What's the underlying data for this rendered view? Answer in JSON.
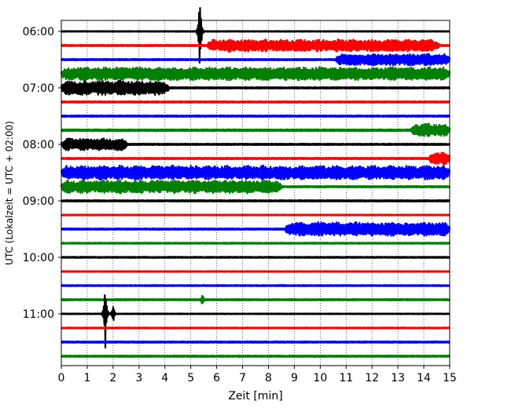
{
  "chart_data": {
    "type": "line",
    "title": "",
    "xlabel": "Zeit  [min]",
    "ylabel": "UTC (Lokalzeit = UTC + 02:00)",
    "xlim": [
      0,
      15
    ],
    "x_ticks": [
      0,
      1,
      2,
      3,
      4,
      5,
      6,
      7,
      8,
      9,
      10,
      11,
      12,
      13,
      14,
      15
    ],
    "x_grid": true,
    "trace_interval_min": 15,
    "trace_colors": [
      "#000000",
      "#ff0000",
      "#0000ff",
      "#008000"
    ],
    "y_ticks": [
      {
        "label": "06:00",
        "index": 0
      },
      {
        "label": "07:00",
        "index": 4
      },
      {
        "label": "08:00",
        "index": 8
      },
      {
        "label": "09:00",
        "index": 12
      },
      {
        "label": "10:00",
        "index": 16
      },
      {
        "label": "11:00",
        "index": 20
      }
    ],
    "traces": [
      {
        "start": "06:00",
        "color": "#000000",
        "base": 0.5,
        "events": [
          {
            "type": "spike",
            "x": 5.35,
            "amp": 3.5
          }
        ]
      },
      {
        "start": "06:15",
        "color": "#ff0000",
        "base": 1,
        "events": [
          {
            "type": "band",
            "x0": 5.65,
            "x1": 14.6,
            "amp": 0.42
          }
        ]
      },
      {
        "start": "06:30",
        "color": "#0000ff",
        "base": 1,
        "events": [
          {
            "type": "band",
            "x0": 10.6,
            "x1": 15,
            "amp": 0.4
          }
        ]
      },
      {
        "start": "06:45",
        "color": "#008000",
        "base": 1,
        "events": [
          {
            "type": "band",
            "x0": 0,
            "x1": 15,
            "amp": 0.45
          }
        ]
      },
      {
        "start": "07:00",
        "color": "#000000",
        "base": 1,
        "events": [
          {
            "type": "band",
            "x0": 0,
            "x1": 4.15,
            "amp": 0.5
          }
        ]
      },
      {
        "start": "07:15",
        "color": "#ff0000",
        "base": 1,
        "events": []
      },
      {
        "start": "07:30",
        "color": "#0000ff",
        "base": 1,
        "events": []
      },
      {
        "start": "07:45",
        "color": "#008000",
        "base": 1.3,
        "events": [
          {
            "type": "band",
            "x0": 13.5,
            "x1": 15,
            "amp": 0.45
          }
        ]
      },
      {
        "start": "08:00",
        "color": "#000000",
        "base": 1,
        "events": [
          {
            "type": "band",
            "x0": 0,
            "x1": 2.55,
            "amp": 0.42
          }
        ]
      },
      {
        "start": "08:15",
        "color": "#ff0000",
        "base": 1,
        "events": [
          {
            "type": "band",
            "x0": 14.2,
            "x1": 15,
            "amp": 0.45
          }
        ]
      },
      {
        "start": "08:30",
        "color": "#0000ff",
        "base": 1,
        "events": [
          {
            "type": "band",
            "x0": 0,
            "x1": 15,
            "amp": 0.48
          }
        ]
      },
      {
        "start": "08:45",
        "color": "#008000",
        "base": 1,
        "events": [
          {
            "type": "band",
            "x0": 0,
            "x1": 8.5,
            "amp": 0.45
          }
        ]
      },
      {
        "start": "09:00",
        "color": "#000000",
        "base": 1,
        "events": []
      },
      {
        "start": "09:15",
        "color": "#ff0000",
        "base": 0.6,
        "events": []
      },
      {
        "start": "09:30",
        "color": "#0000ff",
        "base": 1,
        "events": [
          {
            "type": "band",
            "x0": 8.65,
            "x1": 15,
            "amp": 0.48
          }
        ]
      },
      {
        "start": "09:45",
        "color": "#008000",
        "base": 0.8,
        "events": []
      },
      {
        "start": "10:00",
        "color": "#000000",
        "base": 0.8,
        "events": []
      },
      {
        "start": "10:15",
        "color": "#ff0000",
        "base": 0.6,
        "events": []
      },
      {
        "start": "10:30",
        "color": "#0000ff",
        "base": 0.8,
        "events": []
      },
      {
        "start": "10:45",
        "color": "#008000",
        "base": 1,
        "events": [
          {
            "type": "spike",
            "x": 5.45,
            "amp": 0.5
          }
        ]
      },
      {
        "start": "11:00",
        "color": "#000000",
        "base": 0.5,
        "events": [
          {
            "type": "spike",
            "x": 1.7,
            "amp": 2.6
          },
          {
            "type": "spike",
            "x": 2.0,
            "amp": 0.8
          }
        ]
      },
      {
        "start": "11:15",
        "color": "#ff0000",
        "base": 0.7,
        "events": []
      },
      {
        "start": "11:30",
        "color": "#0000ff",
        "base": 1,
        "events": []
      },
      {
        "start": "11:45",
        "color": "#008000",
        "base": 1,
        "events": []
      }
    ]
  }
}
